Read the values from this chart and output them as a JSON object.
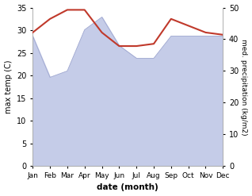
{
  "months": [
    "Jan",
    "Feb",
    "Mar",
    "Apr",
    "May",
    "Jun",
    "Jul",
    "Aug",
    "Sep",
    "Oct",
    "Nov",
    "Dec"
  ],
  "month_x": [
    0,
    1,
    2,
    3,
    4,
    5,
    6,
    7,
    8,
    9,
    10,
    11
  ],
  "temperature": [
    29.5,
    32.5,
    34.5,
    34.5,
    29.5,
    26.5,
    26.5,
    27.0,
    32.5,
    31.0,
    29.5,
    29.0
  ],
  "precipitation": [
    41,
    28,
    30,
    43,
    47,
    38,
    34,
    34,
    41,
    41,
    41,
    41
  ],
  "temp_color": "#c0392b",
  "precip_fill_color": "#c5cce8",
  "precip_line_color": "#a0a8d0",
  "ylabel_left": "max temp (C)",
  "ylabel_right": "med. precipitation (kg/m2)",
  "xlabel": "date (month)",
  "ylim_left": [
    0,
    35
  ],
  "ylim_right": [
    0,
    50
  ],
  "yticks_left": [
    0,
    5,
    10,
    15,
    20,
    25,
    30,
    35
  ],
  "yticks_right": [
    0,
    10,
    20,
    30,
    40,
    50
  ],
  "bg_color": "#ffffff",
  "spine_color": "#aaaaaa"
}
